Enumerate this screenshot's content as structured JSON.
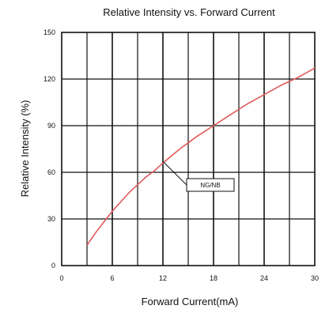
{
  "chart_data": {
    "type": "line",
    "title": "Relative Intensity vs. Forward Current",
    "xlabel": "Forward Current(mA)",
    "ylabel": "Relative Intensity (%)",
    "xlim": [
      0,
      30
    ],
    "ylim": [
      0,
      150
    ],
    "grid": true,
    "x_ticks": [
      0,
      6,
      12,
      18,
      24,
      30
    ],
    "y_ticks": [
      0,
      30,
      60,
      90,
      120,
      150
    ],
    "series": [
      {
        "x": [
          3,
          4,
          5,
          6,
          7,
          8,
          9,
          10,
          11,
          12,
          14,
          16,
          18,
          20,
          22,
          24,
          26,
          28,
          30
        ],
        "y": [
          13,
          21,
          28,
          35,
          41,
          47,
          52,
          57,
          61,
          66,
          75,
          83,
          90,
          97,
          104,
          110,
          116,
          121,
          127
        ],
        "color": "#e05a5a"
      }
    ],
    "annotations": [
      {
        "text": "NG/NB",
        "x": 12,
        "y": 67
      }
    ]
  }
}
